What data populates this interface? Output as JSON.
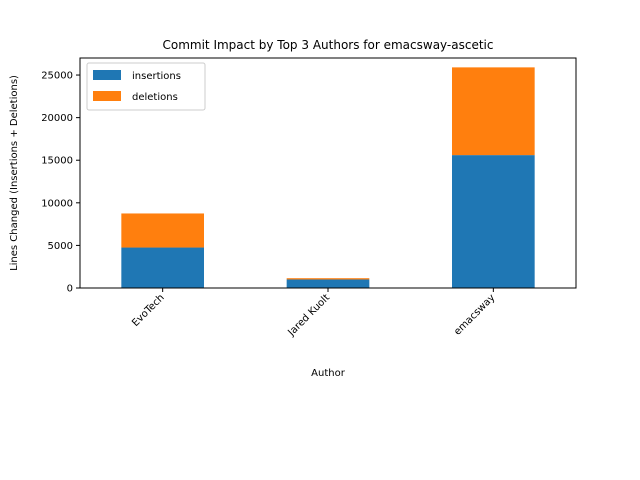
{
  "chart_data": {
    "type": "bar",
    "stacked": true,
    "title": "Commit Impact by Top 3 Authors for emacsway-ascetic",
    "xlabel": "Author",
    "ylabel": "Lines Changed (Insertions + Deletions)",
    "categories": [
      "EvoTech",
      "Jared Kuolt",
      "emacsway"
    ],
    "series": [
      {
        "name": "insertions",
        "values": [
          4750,
          1000,
          15600
        ],
        "color": "#1f77b4"
      },
      {
        "name": "deletions",
        "values": [
          4000,
          150,
          10300
        ],
        "color": "#ff7f0e"
      }
    ],
    "ylim": [
      0,
      27000
    ],
    "yticks": [
      0,
      5000,
      10000,
      15000,
      20000,
      25000
    ],
    "legend_position": "upper-left",
    "grid": false
  }
}
